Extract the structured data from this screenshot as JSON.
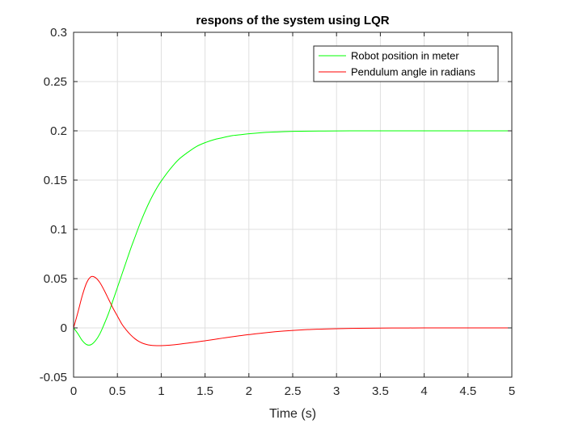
{
  "chart_data": {
    "type": "line",
    "title": "respons of the system using LQR",
    "xlabel": "Time (s)",
    "ylabel": "",
    "xlim": [
      0,
      5
    ],
    "ylim": [
      -0.05,
      0.3
    ],
    "xticks": [
      0,
      0.5,
      1,
      1.5,
      2,
      2.5,
      3,
      3.5,
      4,
      4.5,
      5
    ],
    "xtick_labels": [
      "0",
      "0.5",
      "1",
      "1.5",
      "2",
      "2.5",
      "3",
      "3.5",
      "4",
      "4.5",
      "5"
    ],
    "yticks": [
      -0.05,
      0,
      0.05,
      0.1,
      0.15,
      0.2,
      0.25,
      0.3
    ],
    "ytick_labels": [
      "-0.05",
      "0",
      "0.05",
      "0.1",
      "0.15",
      "0.2",
      "0.25",
      "0.3"
    ],
    "grid": true,
    "legend_position": "top-right",
    "colors": {
      "axes": "#262626",
      "grid": "#dfdfdf"
    },
    "series": [
      {
        "name": "Robot position in meter",
        "color": "#00ff00",
        "x": [
          0,
          0.05,
          0.1,
          0.15,
          0.2,
          0.25,
          0.3,
          0.35,
          0.4,
          0.45,
          0.5,
          0.55,
          0.6,
          0.65,
          0.7,
          0.75,
          0.8,
          0.85,
          0.9,
          0.95,
          1.0,
          1.1,
          1.2,
          1.3,
          1.4,
          1.5,
          1.6,
          1.7,
          1.8,
          1.9,
          2.0,
          2.2,
          2.4,
          2.6,
          2.8,
          3.0,
          3.25,
          3.5,
          3.75,
          4.0,
          4.5,
          5.0
        ],
        "y": [
          0,
          -0.006,
          -0.013,
          -0.017,
          -0.017,
          -0.013,
          -0.006,
          0.004,
          0.015,
          0.028,
          0.041,
          0.054,
          0.067,
          0.08,
          0.092,
          0.104,
          0.115,
          0.125,
          0.134,
          0.142,
          0.149,
          0.161,
          0.171,
          0.178,
          0.184,
          0.188,
          0.191,
          0.193,
          0.195,
          0.196,
          0.197,
          0.1985,
          0.1992,
          0.1996,
          0.1998,
          0.1999,
          0.2,
          0.2,
          0.2,
          0.2,
          0.2,
          0.2
        ]
      },
      {
        "name": "Pendulum angle in radians",
        "color": "#ff0000",
        "x": [
          0,
          0.05,
          0.1,
          0.15,
          0.2,
          0.25,
          0.3,
          0.35,
          0.4,
          0.45,
          0.5,
          0.55,
          0.6,
          0.65,
          0.7,
          0.75,
          0.8,
          0.85,
          0.9,
          0.95,
          1.0,
          1.05,
          1.1,
          1.2,
          1.3,
          1.4,
          1.5,
          1.6,
          1.7,
          1.8,
          1.9,
          2.0,
          2.2,
          2.4,
          2.6,
          2.8,
          3.0,
          3.25,
          3.5,
          3.75,
          4.0,
          4.5,
          5.0
        ],
        "y": [
          0,
          0.016,
          0.033,
          0.046,
          0.052,
          0.051,
          0.046,
          0.038,
          0.029,
          0.02,
          0.012,
          0.004,
          -0.002,
          -0.007,
          -0.011,
          -0.014,
          -0.016,
          -0.0172,
          -0.0178,
          -0.018,
          -0.018,
          -0.0178,
          -0.0175,
          -0.0166,
          -0.0155,
          -0.0143,
          -0.0131,
          -0.0118,
          -0.0104,
          -0.0091,
          -0.0079,
          -0.0068,
          -0.0048,
          -0.0032,
          -0.002,
          -0.0013,
          -0.0008,
          -0.0004,
          -0.0002,
          -0.0001,
          0,
          0,
          0
        ]
      }
    ]
  }
}
